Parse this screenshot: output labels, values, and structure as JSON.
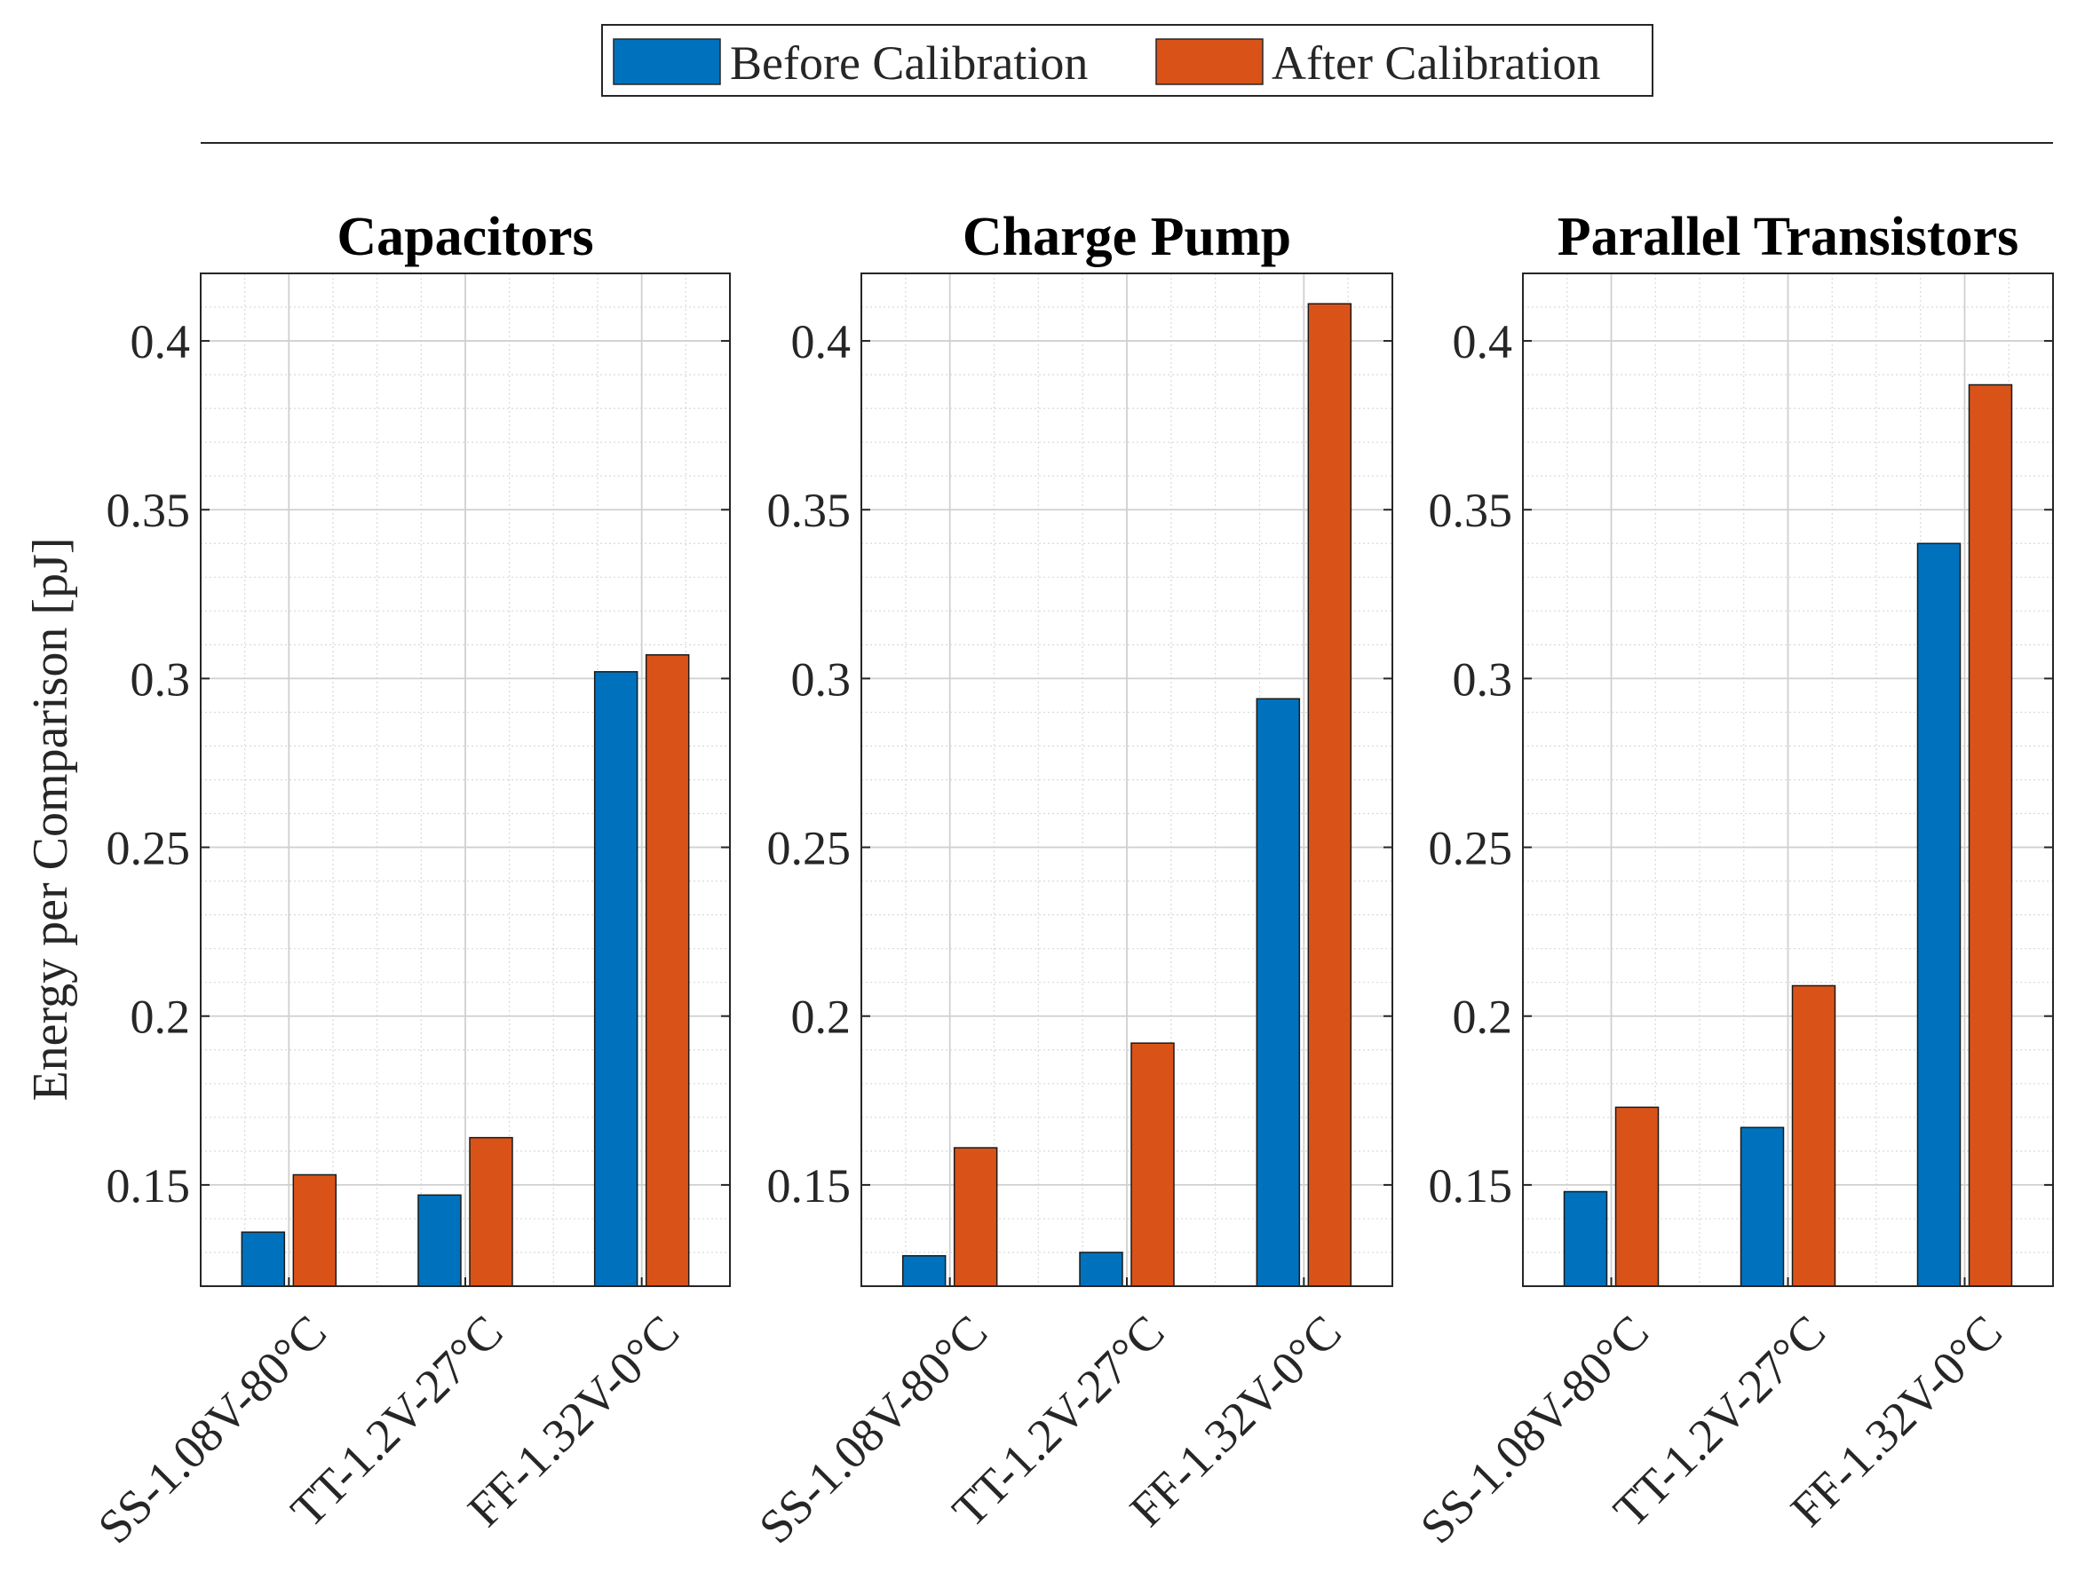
{
  "legend": {
    "items": [
      {
        "label": "Before Calibration",
        "color": "#0072BD"
      },
      {
        "label": "After Calibration",
        "color": "#D95319"
      }
    ]
  },
  "ylabel": "Energy per Comparison [pJ]",
  "chart_data": [
    {
      "type": "bar",
      "title": "Capacitors",
      "categories": [
        "SS-1.08V-80°C",
        "TT-1.2V-27°C",
        "FF-1.32V-0°C"
      ],
      "series": [
        {
          "name": "Before Calibration",
          "color": "#0072BD",
          "values": [
            0.136,
            0.147,
            0.302
          ]
        },
        {
          "name": "After Calibration",
          "color": "#D95319",
          "values": [
            0.153,
            0.164,
            0.307
          ]
        }
      ],
      "ylim": [
        0.12,
        0.42
      ],
      "yticks": [
        0.15,
        0.2,
        0.25,
        0.3,
        0.35,
        0.4
      ],
      "ytick_labels": [
        "0.15",
        "0.2",
        "0.25",
        "0.3",
        "0.35",
        "0.4"
      ],
      "ylabel": "Energy per Comparison [pJ]",
      "grid": true,
      "minor_grid": true
    },
    {
      "type": "bar",
      "title": "Charge Pump",
      "categories": [
        "SS-1.08V-80°C",
        "TT-1.2V-27°C",
        "FF-1.32V-0°C"
      ],
      "series": [
        {
          "name": "Before Calibration",
          "color": "#0072BD",
          "values": [
            0.129,
            0.13,
            0.294
          ]
        },
        {
          "name": "After Calibration",
          "color": "#D95319",
          "values": [
            0.161,
            0.192,
            0.411
          ]
        }
      ],
      "ylim": [
        0.12,
        0.42
      ],
      "yticks": [
        0.15,
        0.2,
        0.25,
        0.3,
        0.35,
        0.4
      ],
      "ytick_labels": [
        "0.15",
        "0.2",
        "0.25",
        "0.3",
        "0.35",
        "0.4"
      ],
      "grid": true,
      "minor_grid": true
    },
    {
      "type": "bar",
      "title": "Parallel Transistors",
      "categories": [
        "SS-1.08V-80°C",
        "TT-1.2V-27°C",
        "FF-1.32V-0°C"
      ],
      "series": [
        {
          "name": "Before Calibration",
          "color": "#0072BD",
          "values": [
            0.148,
            0.167,
            0.34
          ]
        },
        {
          "name": "After Calibration",
          "color": "#D95319",
          "values": [
            0.173,
            0.209,
            0.387
          ]
        }
      ],
      "ylim": [
        0.12,
        0.42
      ],
      "yticks": [
        0.15,
        0.2,
        0.25,
        0.3,
        0.35,
        0.4
      ],
      "ytick_labels": [
        "0.15",
        "0.2",
        "0.25",
        "0.3",
        "0.35",
        "0.4"
      ],
      "grid": true,
      "minor_grid": true
    }
  ]
}
